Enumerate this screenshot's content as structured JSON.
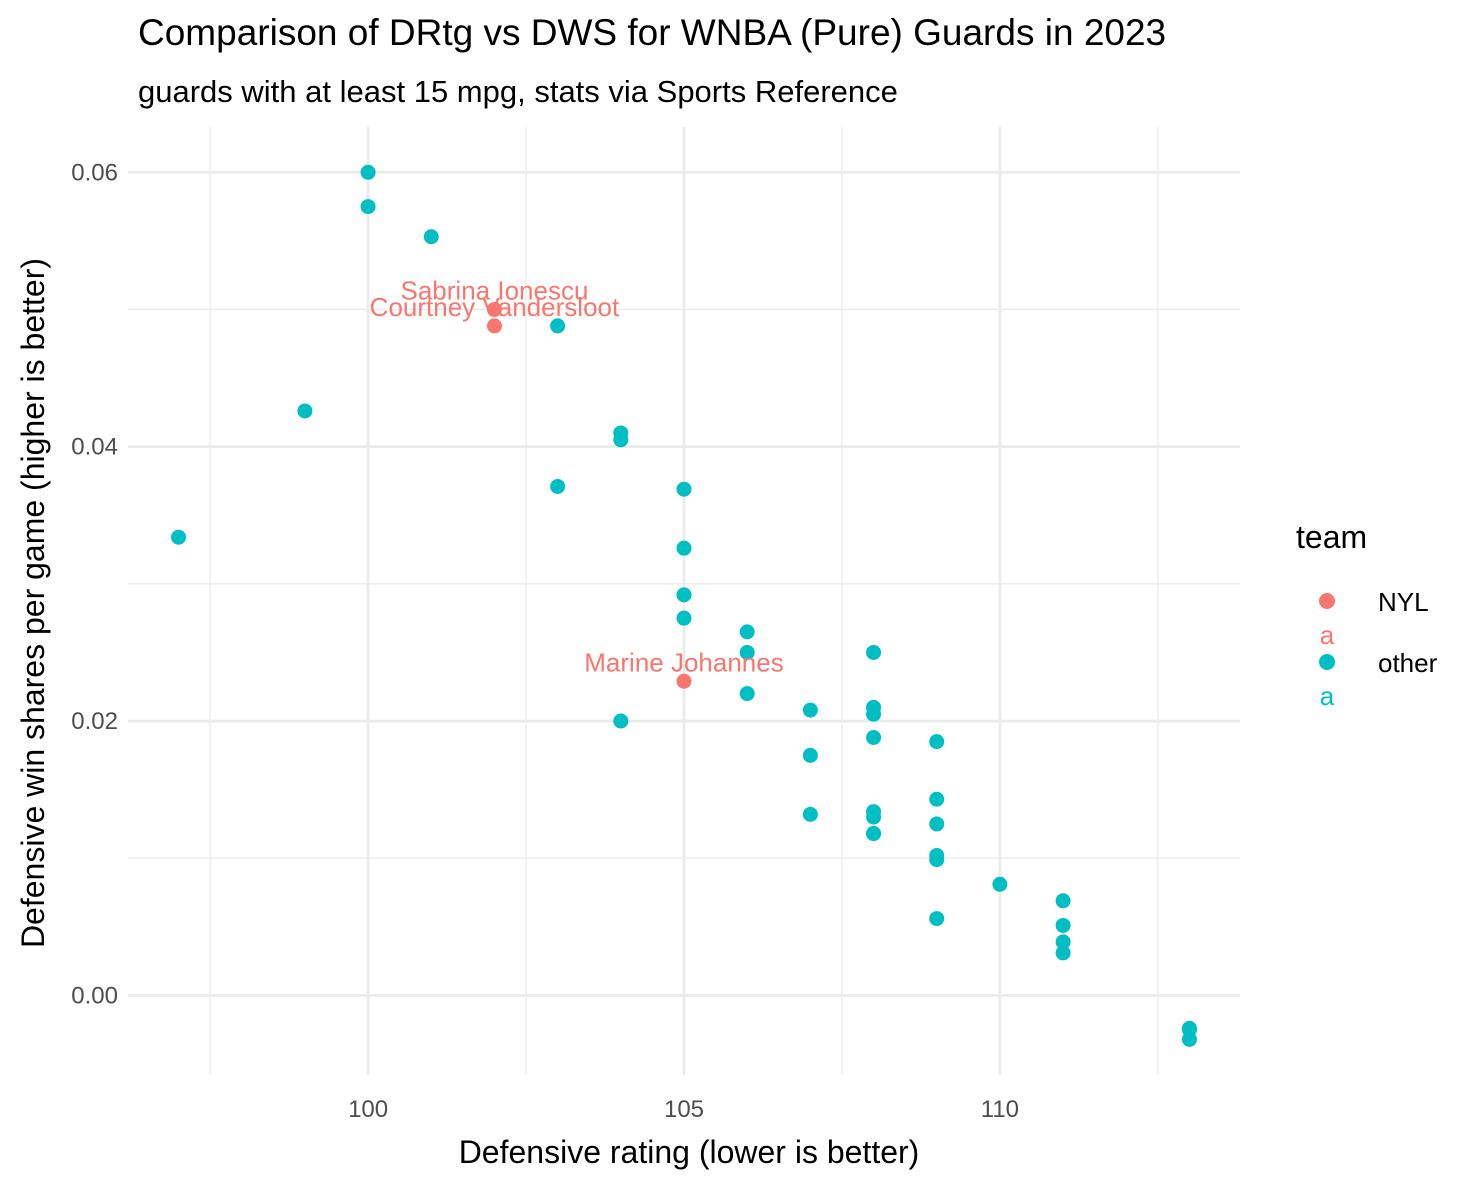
{
  "chart_data": {
    "type": "scatter",
    "title": "Comparison of DRtg vs DWS for WNBA (Pure) Guards in 2023",
    "subtitle": "guards with at least 15 mpg, stats via Sports Reference",
    "xlabel": "Defensive rating (lower is better)",
    "ylabel": "Defensive win shares per game (higher is better)",
    "xlim": [
      96.2,
      113.8
    ],
    "ylim": [
      -0.0058,
      0.0633
    ],
    "x_major_ticks": [
      100,
      105,
      110
    ],
    "x_tick_labels": [
      "100",
      "105",
      "110"
    ],
    "x_minor_ticks": [
      97.5,
      102.5,
      107.5,
      112.5
    ],
    "y_major_ticks": [
      0,
      0.02,
      0.04,
      0.06
    ],
    "y_tick_labels": [
      "0.00",
      "0.02",
      "0.04",
      "0.06"
    ],
    "y_minor_ticks": [
      0.01,
      0.03,
      0.05
    ],
    "grid": true,
    "legend": {
      "title": "team",
      "position": "right",
      "key_glyph": "a",
      "entries": [
        "NYL",
        "other"
      ]
    },
    "series": [
      {
        "name": "NYL",
        "color": "#F8766D",
        "x": [
          102,
          102,
          105
        ],
        "y": [
          0.05,
          0.0488,
          0.0229
        ],
        "labels": [
          "Sabrina Ionescu",
          "Courtney Vandersloot",
          "Marine Johannes"
        ]
      },
      {
        "name": "other",
        "color": "#00BFC4",
        "x": [
          97,
          99,
          100,
          100,
          101,
          103,
          103,
          104,
          104,
          104,
          105,
          105,
          105,
          105,
          106,
          106,
          106,
          107,
          107,
          107,
          108,
          108,
          108,
          108,
          108,
          108,
          108,
          108,
          109,
          109,
          109,
          109,
          109,
          109,
          110,
          111,
          111,
          111,
          111,
          113,
          113,
          113
        ],
        "y": [
          0.0334,
          0.0426,
          0.06,
          0.0575,
          0.0553,
          0.0488,
          0.0371,
          0.041,
          0.0405,
          0.02,
          0.0369,
          0.0326,
          0.0292,
          0.0275,
          0.0265,
          0.025,
          0.022,
          0.0208,
          0.0175,
          0.0132,
          0.025,
          0.021,
          0.0205,
          0.0188,
          0.0134,
          0.013,
          0.0118,
          0.0118,
          0.0185,
          0.0143,
          0.0125,
          0.0102,
          0.0099,
          0.0056,
          0.0081,
          0.0069,
          0.0051,
          0.0039,
          0.0031,
          -0.0024,
          -0.0025,
          -0.0032
        ]
      }
    ]
  }
}
